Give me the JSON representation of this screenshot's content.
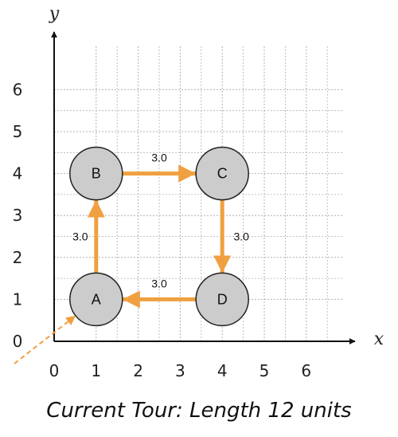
{
  "diagram": {
    "x_axis_label": "x",
    "y_axis_label": "y",
    "x_ticks": [
      "0",
      "1",
      "2",
      "3",
      "4",
      "5",
      "6"
    ],
    "y_ticks": [
      "0",
      "1",
      "2",
      "3",
      "4",
      "5",
      "6"
    ],
    "nodes": [
      {
        "id": "A",
        "label": "A",
        "x": 1,
        "y": 1
      },
      {
        "id": "B",
        "label": "B",
        "x": 1,
        "y": 4
      },
      {
        "id": "C",
        "label": "C",
        "x": 4,
        "y": 4
      },
      {
        "id": "D",
        "label": "D",
        "x": 4,
        "y": 1
      }
    ],
    "edges": [
      {
        "from": "A",
        "to": "B",
        "label": "3.0"
      },
      {
        "from": "B",
        "to": "C",
        "label": "3.0"
      },
      {
        "from": "C",
        "to": "D",
        "label": "3.0"
      },
      {
        "from": "D",
        "to": "A",
        "label": "3.0"
      }
    ],
    "start_marker": {
      "to": "A"
    },
    "colors": {
      "edge": "#f0a040",
      "node_fill": "#cccccc",
      "node_stroke": "#222222",
      "grid": "#b0b0b0"
    }
  },
  "caption": "Current Tour: Length 12 units"
}
